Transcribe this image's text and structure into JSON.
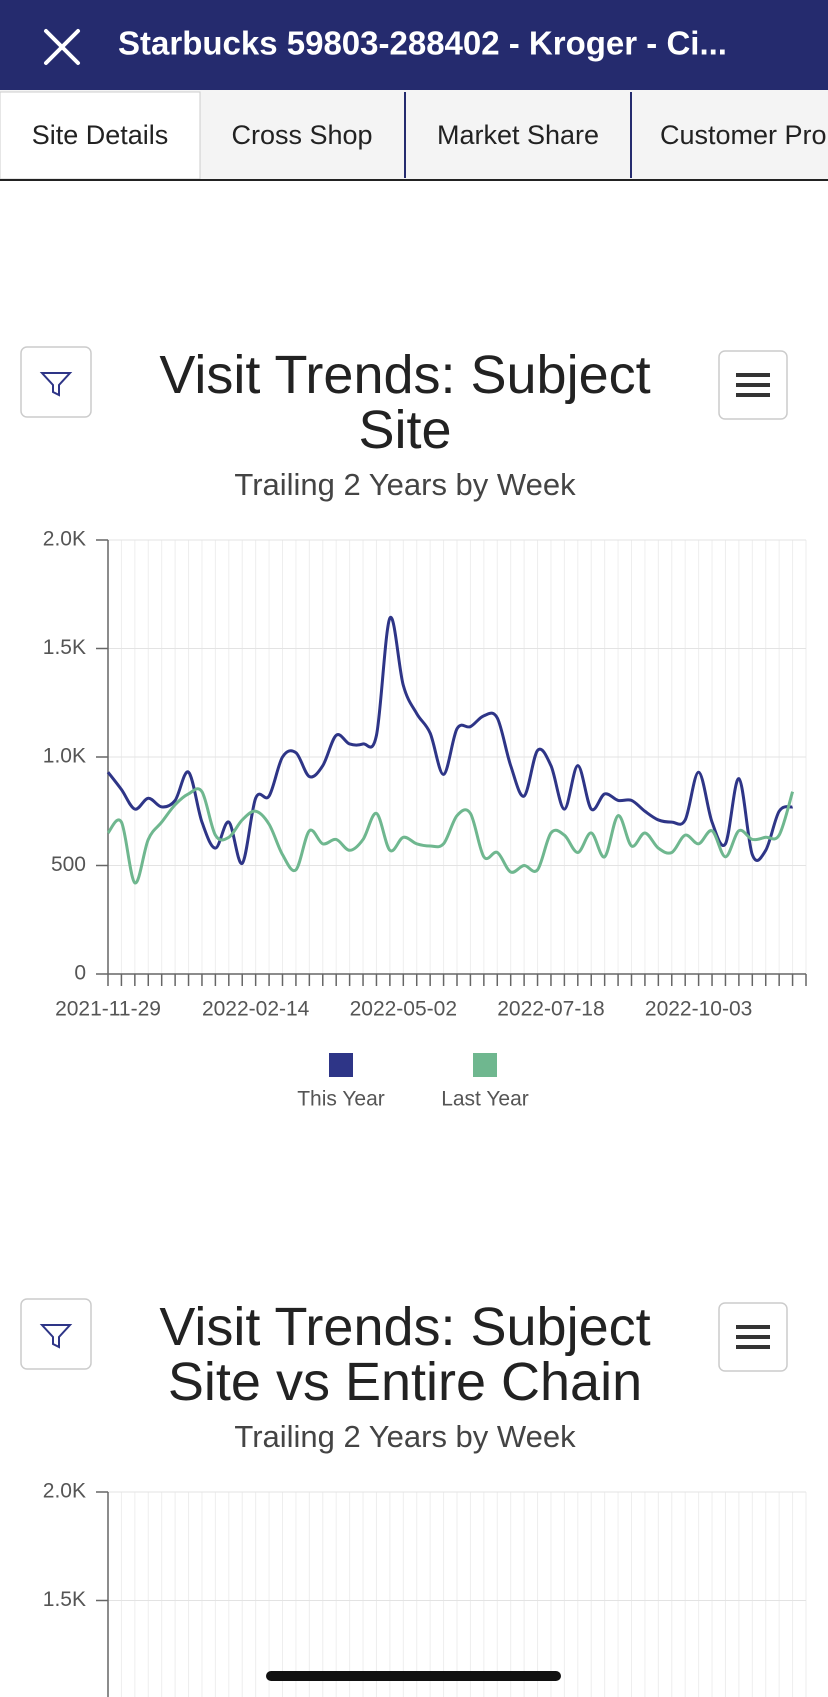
{
  "header": {
    "title": "Starbucks 59803-288402 - Kroger - Ci..."
  },
  "tabs": [
    "Site Details",
    "Cross Shop",
    "Market Share",
    "Customer Pro"
  ],
  "chart_data": [
    {
      "type": "line",
      "title": "Visit Trends: Subject Site",
      "subtitle": "Trailing 2 Years by Week",
      "categories": [
        "2021-11-29",
        null,
        null,
        null,
        null,
        null,
        null,
        null,
        null,
        null,
        null,
        "2022-02-14",
        null,
        null,
        null,
        null,
        null,
        null,
        null,
        null,
        null,
        null,
        "2022-05-02",
        null,
        null,
        null,
        null,
        null,
        null,
        null,
        null,
        null,
        null,
        "2022-07-18",
        null,
        null,
        null,
        null,
        null,
        null,
        null,
        null,
        null,
        null,
        "2022-10-03",
        null,
        null,
        null,
        null,
        null,
        null,
        null
      ],
      "series": [
        {
          "name": "This Year",
          "color": "#2e3587",
          "values": [
            930,
            850,
            760,
            810,
            770,
            800,
            930,
            700,
            580,
            700,
            510,
            810,
            820,
            1000,
            1020,
            910,
            960,
            1100,
            1060,
            1060,
            1100,
            1640,
            1330,
            1200,
            1110,
            920,
            1130,
            1140,
            1190,
            1180,
            960,
            820,
            1030,
            960,
            760,
            960,
            760,
            830,
            800,
            800,
            750,
            710,
            700,
            710,
            930,
            700,
            600,
            900,
            550,
            570,
            750,
            770
          ]
        },
        {
          "name": "Last Year",
          "color": "#6fb78f",
          "values": [
            650,
            700,
            420,
            620,
            700,
            780,
            830,
            840,
            640,
            630,
            710,
            750,
            690,
            550,
            480,
            660,
            600,
            620,
            570,
            620,
            740,
            570,
            630,
            600,
            590,
            600,
            730,
            740,
            540,
            560,
            470,
            500,
            480,
            650,
            640,
            560,
            650,
            540,
            730,
            590,
            650,
            580,
            560,
            640,
            600,
            660,
            540,
            660,
            620,
            630,
            640,
            840
          ]
        }
      ],
      "ylim": [
        0,
        2000
      ],
      "yticks": [
        0,
        500,
        {
          "value": 1000,
          "label": "1.0K"
        },
        {
          "value": 1500,
          "label": "1.5K"
        },
        {
          "value": 2000,
          "label": "2.0K"
        }
      ],
      "grid": true
    },
    {
      "type": "line",
      "title": "Visit Trends: Subject Site vs Entire Chain",
      "subtitle": "Trailing 2 Years by Week",
      "ylim": [
        0,
        2000
      ],
      "yticks": [
        {
          "value": 1500,
          "label": "1.5K"
        },
        {
          "value": 2000,
          "label": "2.0K"
        }
      ],
      "grid": true
    }
  ]
}
